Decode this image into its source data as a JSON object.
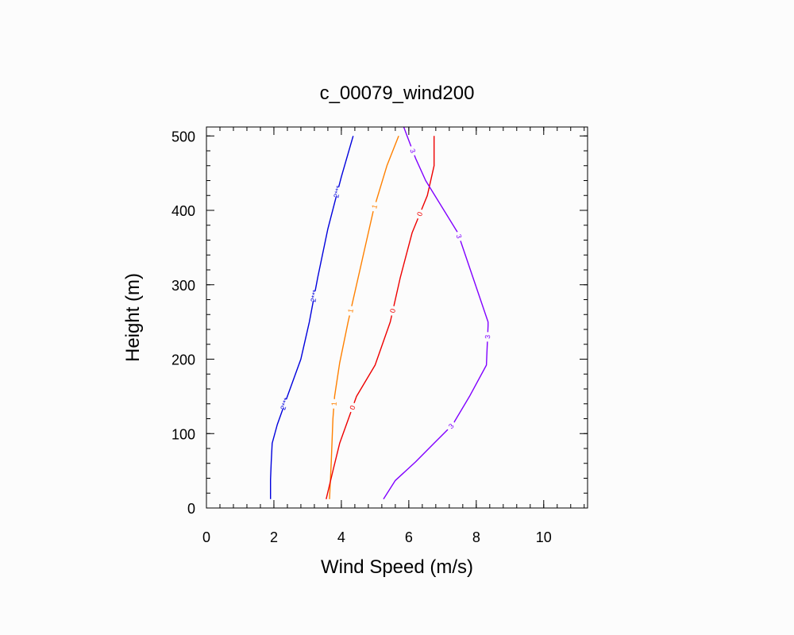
{
  "chart_data": {
    "type": "line",
    "title": "c_00079_wind200",
    "xlabel": "Wind Speed (m/s)",
    "ylabel": "Height (m)",
    "xlim": [
      0,
      11.3
    ],
    "ylim": [
      0,
      512
    ],
    "xticks": [
      0,
      2,
      4,
      6,
      8,
      10
    ],
    "yticks": [
      0,
      100,
      200,
      300,
      400,
      500
    ],
    "x_minor_step": 0.4,
    "y_minor_step": 20,
    "grid": false,
    "legend": "none",
    "series": [
      {
        "label": "2***",
        "color": "#0000dd",
        "points": [
          [
            1.9,
            12
          ],
          [
            1.9,
            38
          ],
          [
            1.92,
            62
          ],
          [
            1.95,
            87
          ],
          [
            2.1,
            112
          ],
          [
            2.4,
            150
          ],
          [
            2.8,
            200
          ],
          [
            3.05,
            250
          ],
          [
            3.3,
            310
          ],
          [
            3.6,
            375
          ],
          [
            4.0,
            445
          ],
          [
            4.35,
            500
          ]
        ],
        "label_heights": [
          140,
          285,
          425
        ]
      },
      {
        "label": "1",
        "color": "#ff8000",
        "points": [
          [
            3.65,
            12
          ],
          [
            3.7,
            62
          ],
          [
            3.75,
            120
          ],
          [
            3.8,
            150
          ],
          [
            3.95,
            195
          ],
          [
            4.2,
            250
          ],
          [
            4.55,
            320
          ],
          [
            4.95,
            400
          ],
          [
            5.35,
            460
          ],
          [
            5.7,
            500
          ]
        ],
        "label_heights": [
          140,
          265,
          405
        ]
      },
      {
        "label": "0",
        "color": "#ee0000",
        "points": [
          [
            3.55,
            12
          ],
          [
            3.75,
            50
          ],
          [
            3.95,
            87
          ],
          [
            4.45,
            150
          ],
          [
            5.0,
            192
          ],
          [
            5.45,
            250
          ],
          [
            5.75,
            310
          ],
          [
            6.1,
            370
          ],
          [
            6.55,
            420
          ],
          [
            6.75,
            460
          ],
          [
            6.75,
            500
          ]
        ],
        "label_heights": [
          135,
          265,
          395
        ]
      },
      {
        "label": "3",
        "color": "#8000ff",
        "points": [
          [
            5.25,
            12
          ],
          [
            5.6,
            37
          ],
          [
            6.2,
            62
          ],
          [
            6.75,
            87
          ],
          [
            7.3,
            112
          ],
          [
            7.8,
            150
          ],
          [
            8.3,
            192
          ],
          [
            8.35,
            245
          ],
          [
            8.35,
            250
          ],
          [
            7.9,
            310
          ],
          [
            7.45,
            370
          ],
          [
            6.5,
            440
          ],
          [
            6.2,
            470
          ],
          [
            5.95,
            500
          ],
          [
            5.85,
            512
          ]
        ],
        "label_heights": [
          110,
          230,
          365,
          480
        ]
      }
    ]
  }
}
